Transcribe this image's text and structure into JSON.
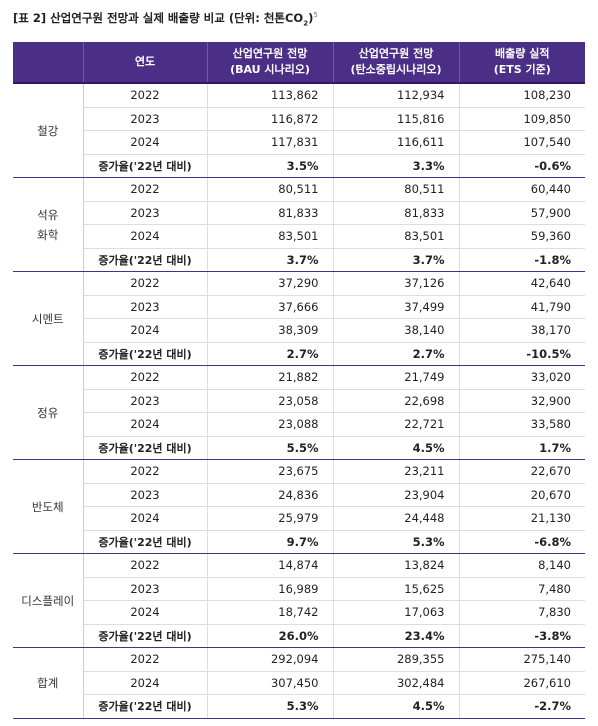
{
  "caption": {
    "prefix": "[표 2] 산업연구원 전망과 실제 배출량 비교 (단위: 천톤CO",
    "subscript": "2",
    "suffix": ")",
    "footnote": "5"
  },
  "headers": {
    "year": "연도",
    "bau_line1": "산업연구원 전망",
    "bau_line2": "(BAU 시나리오)",
    "nz_line1": "산업연구원 전망",
    "nz_line2": "(탄소중립시나리오)",
    "actual_line1": "배출량 실적",
    "actual_line2": "(ETS 기준)"
  },
  "sectors": [
    {
      "name": [
        "철강"
      ],
      "rows": [
        {
          "year": "2022",
          "bau": "113,862",
          "nz": "112,934",
          "actual": "108,230"
        },
        {
          "year": "2023",
          "bau": "116,872",
          "nz": "115,816",
          "actual": "109,850"
        },
        {
          "year": "2024",
          "bau": "117,831",
          "nz": "116,611",
          "actual": "107,540"
        }
      ],
      "growth": {
        "label": "증가율('22년 대비)",
        "bau": "3.5%",
        "nz": "3.3%",
        "actual": "-0.6%"
      }
    },
    {
      "name": [
        "석유",
        "화학"
      ],
      "rows": [
        {
          "year": "2022",
          "bau": "80,511",
          "nz": "80,511",
          "actual": "60,440"
        },
        {
          "year": "2023",
          "bau": "81,833",
          "nz": "81,833",
          "actual": "57,900"
        },
        {
          "year": "2024",
          "bau": "83,501",
          "nz": "83,501",
          "actual": "59,360"
        }
      ],
      "growth": {
        "label": "증가율('22년 대비)",
        "bau": "3.7%",
        "nz": "3.7%",
        "actual": "-1.8%"
      }
    },
    {
      "name": [
        "시멘트"
      ],
      "rows": [
        {
          "year": "2022",
          "bau": "37,290",
          "nz": "37,126",
          "actual": "42,640"
        },
        {
          "year": "2023",
          "bau": "37,666",
          "nz": "37,499",
          "actual": "41,790"
        },
        {
          "year": "2024",
          "bau": "38,309",
          "nz": "38,140",
          "actual": "38,170"
        }
      ],
      "growth": {
        "label": "증가율('22년 대비)",
        "bau": "2.7%",
        "nz": "2.7%",
        "actual": "-10.5%"
      }
    },
    {
      "name": [
        "정유"
      ],
      "rows": [
        {
          "year": "2022",
          "bau": "21,882",
          "nz": "21,749",
          "actual": "33,020"
        },
        {
          "year": "2023",
          "bau": "23,058",
          "nz": "22,698",
          "actual": "32,900"
        },
        {
          "year": "2024",
          "bau": "23,088",
          "nz": "22,721",
          "actual": "33,580"
        }
      ],
      "growth": {
        "label": "증가율('22년 대비)",
        "bau": "5.5%",
        "nz": "4.5%",
        "actual": "1.7%"
      }
    },
    {
      "name": [
        "반도체"
      ],
      "rows": [
        {
          "year": "2022",
          "bau": "23,675",
          "nz": "23,211",
          "actual": "22,670"
        },
        {
          "year": "2023",
          "bau": "24,836",
          "nz": "23,904",
          "actual": "20,670"
        },
        {
          "year": "2024",
          "bau": "25,979",
          "nz": "24,448",
          "actual": "21,130"
        }
      ],
      "growth": {
        "label": "증가율('22년 대비)",
        "bau": "9.7%",
        "nz": "5.3%",
        "actual": "-6.8%"
      }
    },
    {
      "name": [
        "디스플레이"
      ],
      "rows": [
        {
          "year": "2022",
          "bau": "14,874",
          "nz": "13,824",
          "actual": "8,140"
        },
        {
          "year": "2023",
          "bau": "16,989",
          "nz": "15,625",
          "actual": "7,480"
        },
        {
          "year": "2024",
          "bau": "18,742",
          "nz": "17,063",
          "actual": "7,830"
        }
      ],
      "growth": {
        "label": "증가율('22년 대비)",
        "bau": "26.0%",
        "nz": "23.4%",
        "actual": "-3.8%"
      }
    },
    {
      "name": [
        "합계"
      ],
      "rows": [
        {
          "year": "2022",
          "bau": "292,094",
          "nz": "289,355",
          "actual": "275,140"
        },
        {
          "year": "2024",
          "bau": "307,450",
          "nz": "302,484",
          "actual": "267,610"
        }
      ],
      "growth": {
        "label": "증가율('22년 대비)",
        "bau": "5.3%",
        "nz": "4.5%",
        "actual": "-2.7%"
      }
    }
  ]
}
